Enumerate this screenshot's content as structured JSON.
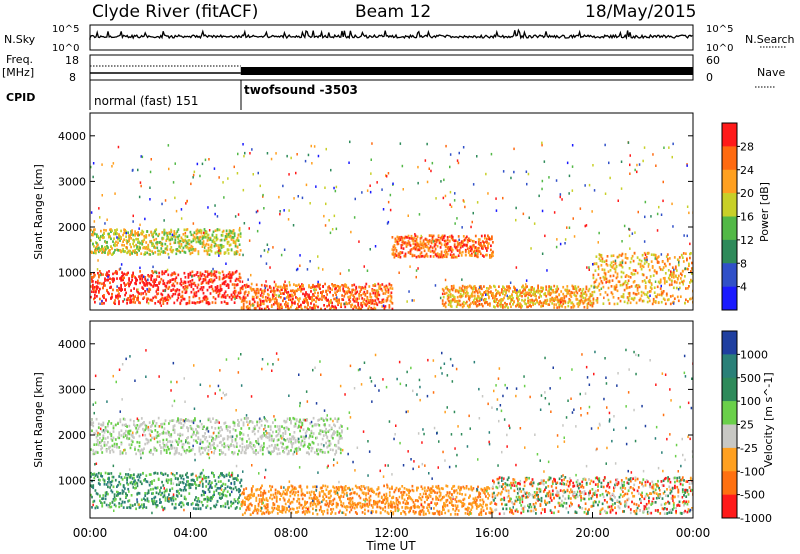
{
  "header": {
    "title": "Clyde River (fitACF)",
    "beam": "Beam 12",
    "date": "18/May/2015"
  },
  "status": {
    "nsky_label": "N.Sky",
    "nsky_ticks": [
      "10^5",
      "10^0"
    ],
    "nsearch_label": "N.Search",
    "nsearch_ticks": [
      "10^5",
      "10^0"
    ],
    "freq_label": "Freq.",
    "freq_unit": "[MHz]",
    "freq_ticks": [
      "18",
      "8"
    ],
    "nave_label": "Nave",
    "nave_ticks": [
      "60",
      "0"
    ],
    "cpid_label": "CPID",
    "cpid_segments": [
      {
        "name": "normal (fast) 151",
        "start_hour": 0,
        "end_hour": 6
      },
      {
        "name": "twofsound -3503",
        "start_hour": 6,
        "end_hour": 24
      }
    ]
  },
  "colors": {
    "power_scale": [
      "#1a1aff",
      "#3050c8",
      "#2e8a5a",
      "#52b846",
      "#c8d028",
      "#ffa020",
      "#ff6a10",
      "#ff1a1a"
    ],
    "velocity_scale": [
      "#1f3fa0",
      "#2a8078",
      "#2e8a5a",
      "#6ad04a",
      "#c8c8c4",
      "#ffa020",
      "#ff7010",
      "#ff1a1a"
    ]
  },
  "chart_data": [
    {
      "type": "heatmap",
      "name": "power",
      "xlabel": "",
      "ylabel": "Slant Range [km]",
      "xlim": [
        0,
        24
      ],
      "ylim": [
        180,
        4500
      ],
      "yticks": [
        1000,
        2000,
        3000,
        4000
      ],
      "colorbar": {
        "label": "Power [dB]",
        "ticks": [
          "4",
          "8",
          "12",
          "16",
          "20",
          "24",
          "28"
        ],
        "range": [
          0,
          32
        ]
      },
      "bands": [
        {
          "start_hour": 0,
          "end_hour": 6,
          "center_km": 700,
          "width_km": 450,
          "value": 30
        },
        {
          "start_hour": 0,
          "end_hour": 6,
          "center_km": 1700,
          "width_km": 350,
          "value": 20
        },
        {
          "start_hour": 6,
          "end_hour": 12,
          "center_km": 500,
          "width_km": 350,
          "value": 26
        },
        {
          "start_hour": 12,
          "end_hour": 16,
          "center_km": 1600,
          "width_km": 300,
          "value": 28
        },
        {
          "start_hour": 14,
          "end_hour": 20,
          "center_km": 500,
          "width_km": 300,
          "value": 22
        },
        {
          "start_hour": 20,
          "end_hour": 24,
          "center_km": 900,
          "width_km": 700,
          "value": 24
        }
      ]
    },
    {
      "type": "heatmap",
      "name": "velocity",
      "xlabel": "Time UT",
      "ylabel": "Slant Range [km]",
      "xlim": [
        0,
        24
      ],
      "ylim": [
        180,
        4500
      ],
      "xticks": [
        "00:00",
        "04:00",
        "08:00",
        "12:00",
        "16:00",
        "20:00",
        "00:00"
      ],
      "yticks": [
        1000,
        2000,
        3000,
        4000
      ],
      "colorbar": {
        "label": "Velocity [m s^-1]",
        "ticks": [
          "1000",
          "500",
          "100",
          "25",
          "-25",
          "-100",
          "-500",
          "-1000"
        ]
      },
      "bands": [
        {
          "start_hour": 0,
          "end_hour": 6,
          "center_km": 800,
          "width_km": 500,
          "value": "green"
        },
        {
          "start_hour": 0,
          "end_hour": 10,
          "center_km": 2000,
          "width_km": 500,
          "value": "grey"
        },
        {
          "start_hour": 6,
          "end_hour": 16,
          "center_km": 600,
          "width_km": 400,
          "value": "orange"
        },
        {
          "start_hour": 16,
          "end_hour": 24,
          "center_km": 700,
          "width_km": 500,
          "value": "mixed"
        }
      ]
    }
  ]
}
